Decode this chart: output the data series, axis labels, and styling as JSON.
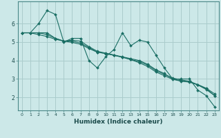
{
  "xlabel": "Humidex (Indice chaleur)",
  "background_color": "#cce8e8",
  "grid_color": "#aacccc",
  "line_color": "#1a6e64",
  "xlim": [
    -0.5,
    23.5
  ],
  "ylim": [
    1.3,
    7.2
  ],
  "xticks": [
    0,
    1,
    2,
    3,
    4,
    5,
    6,
    7,
    8,
    9,
    10,
    11,
    12,
    13,
    14,
    15,
    16,
    17,
    18,
    19,
    20,
    21,
    22,
    23
  ],
  "yticks": [
    2,
    3,
    4,
    5,
    6
  ],
  "series": [
    [
      5.5,
      5.5,
      6.0,
      6.7,
      6.5,
      5.0,
      5.2,
      5.2,
      4.0,
      3.6,
      4.2,
      4.6,
      5.5,
      4.8,
      5.1,
      5.0,
      4.3,
      3.6,
      3.0,
      3.0,
      3.0,
      2.4,
      2.1,
      1.5
    ],
    [
      5.5,
      5.5,
      5.5,
      5.5,
      5.2,
      5.05,
      5.1,
      5.05,
      4.75,
      4.5,
      4.4,
      4.3,
      4.2,
      4.1,
      4.0,
      3.8,
      3.5,
      3.3,
      3.0,
      2.9,
      2.85,
      2.7,
      2.5,
      2.2
    ],
    [
      5.5,
      5.5,
      5.4,
      5.3,
      5.15,
      5.05,
      5.05,
      4.95,
      4.7,
      4.45,
      4.38,
      4.28,
      4.18,
      4.05,
      3.95,
      3.75,
      3.45,
      3.25,
      3.05,
      2.95,
      2.88,
      2.68,
      2.48,
      2.1
    ],
    [
      5.5,
      5.5,
      5.5,
      5.4,
      5.2,
      5.05,
      4.98,
      4.88,
      4.65,
      4.45,
      4.38,
      4.28,
      4.18,
      4.05,
      3.88,
      3.68,
      3.38,
      3.18,
      2.98,
      2.88,
      2.83,
      2.68,
      2.43,
      2.1
    ]
  ]
}
